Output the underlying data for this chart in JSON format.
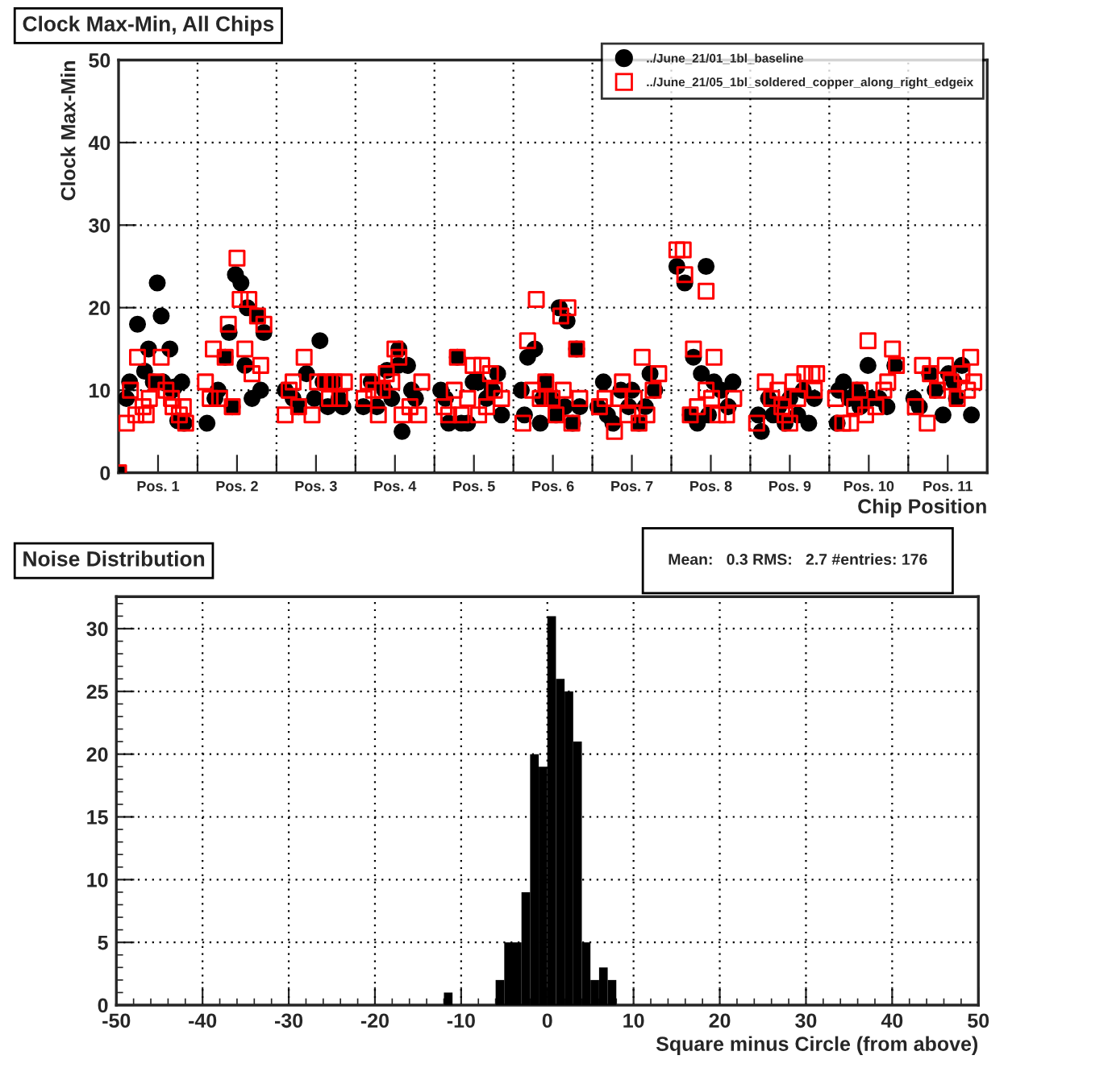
{
  "chart_data": [
    {
      "type": "scatter",
      "title": "Clock Max-Min, All Chips",
      "xlabel": "Chip Position",
      "ylabel": "Clock Max-Min",
      "xlim": [
        0,
        11
      ],
      "ylim": [
        0,
        50
      ],
      "yticks": [
        0,
        10,
        20,
        30,
        40,
        50
      ],
      "xticks": [
        {
          "value": 1,
          "label": null
        },
        {
          "value": 2,
          "label": null
        },
        {
          "value": 3,
          "label": null
        },
        {
          "value": 4,
          "label": null
        },
        {
          "value": 5,
          "label": null
        },
        {
          "value": 6,
          "label": null
        },
        {
          "value": 7,
          "label": null
        },
        {
          "value": 8,
          "label": null
        },
        {
          "value": 9,
          "label": null
        },
        {
          "value": 10,
          "label": null
        },
        {
          "value": 0.5,
          "label": "Pos. 1"
        },
        {
          "value": 1.5,
          "label": "Pos. 2"
        },
        {
          "value": 2.5,
          "label": "Pos. 3"
        },
        {
          "value": 3.5,
          "label": "Pos. 4"
        },
        {
          "value": 4.5,
          "label": "Pos. 5"
        },
        {
          "value": 5.5,
          "label": "Pos. 6"
        },
        {
          "value": 6.5,
          "label": "Pos. 7"
        },
        {
          "value": 7.5,
          "label": "Pos. 8"
        },
        {
          "value": 8.5,
          "label": "Pos. 9"
        },
        {
          "value": 9.5,
          "label": "Pos. 10"
        },
        {
          "value": 10.5,
          "label": "Pos. 11"
        }
      ],
      "grid": true,
      "legend": "top right",
      "series": [
        {
          "name": "../June_21/01_1bl_baseline",
          "color": "#000000",
          "marker": "circle",
          "x": [
            0.0,
            0.1,
            0.14,
            0.24,
            0.33,
            0.38,
            0.44,
            0.49,
            0.54,
            0.56,
            0.65,
            0.68,
            0.71,
            0.75,
            0.8,
            0.83,
            1.12,
            1.22,
            1.26,
            1.35,
            1.4,
            1.44,
            1.48,
            1.55,
            1.6,
            1.63,
            1.69,
            1.76,
            1.8,
            1.84,
            2.11,
            2.21,
            2.28,
            2.38,
            2.48,
            2.55,
            2.59,
            2.65,
            2.72,
            2.79,
            2.84,
            3.1,
            3.2,
            3.27,
            3.37,
            3.4,
            3.46,
            3.54,
            3.55,
            3.59,
            3.66,
            3.71,
            3.76,
            4.08,
            4.14,
            4.18,
            4.29,
            4.34,
            4.42,
            4.49,
            4.56,
            4.66,
            4.73,
            4.8,
            4.85,
            5.1,
            5.14,
            5.18,
            5.27,
            5.34,
            5.37,
            5.41,
            5.48,
            5.54,
            5.58,
            5.65,
            5.68,
            5.75,
            5.8,
            5.84,
            6.07,
            6.14,
            6.19,
            6.26,
            6.36,
            6.46,
            6.5,
            6.59,
            6.67,
            6.73,
            6.79,
            7.07,
            7.17,
            7.24,
            7.28,
            7.33,
            7.38,
            7.44,
            7.47,
            7.54,
            7.63,
            7.72,
            7.78,
            8.1,
            8.14,
            8.23,
            8.29,
            8.36,
            8.44,
            8.5,
            8.6,
            8.67,
            8.74,
            8.81,
            9.1,
            9.12,
            9.18,
            9.25,
            9.35,
            9.39,
            9.49,
            9.52,
            9.63,
            9.73,
            9.83,
            10.07,
            10.14,
            10.27,
            10.34,
            10.44,
            10.51,
            10.58,
            10.61,
            10.68,
            10.8
          ],
          "values": [
            0,
            9,
            11,
            18,
            12.3,
            15,
            11,
            23,
            19,
            11,
            15,
            10,
            10.4,
            6.3,
            11,
            6,
            6,
            9,
            10,
            14,
            17,
            8,
            24,
            23,
            13,
            20,
            9,
            19,
            10,
            17,
            10,
            9,
            8,
            12,
            9,
            16,
            11,
            8,
            11,
            9,
            8,
            8,
            11,
            8,
            10,
            12.4,
            9,
            13,
            15,
            5,
            13,
            10,
            9,
            10,
            9,
            6,
            14,
            6,
            6,
            11,
            11,
            9,
            10,
            12,
            7,
            10,
            7,
            14,
            15,
            6,
            9,
            11,
            9,
            7,
            20,
            8,
            18.4,
            6,
            15,
            8,
            8,
            11,
            7,
            6,
            10,
            8,
            10,
            6,
            8,
            12,
            10,
            25,
            23,
            7,
            14,
            6,
            12,
            25,
            7,
            11,
            10,
            8,
            11,
            7,
            5,
            9,
            7,
            8,
            6,
            9,
            7,
            10,
            6,
            9,
            6,
            10,
            11,
            9,
            10,
            8,
            13,
            9,
            9,
            8,
            13,
            9,
            8,
            12,
            10,
            7,
            12,
            11,
            9,
            13,
            7
          ]
        },
        {
          "name": "../June_21/05_1bl_soldered_copper_along_right_edgeix",
          "color": "#ff0000",
          "marker": "square",
          "x": [
            0.0,
            0.1,
            0.15,
            0.22,
            0.24,
            0.31,
            0.35,
            0.39,
            0.48,
            0.54,
            0.6,
            0.67,
            0.69,
            0.77,
            0.82,
            0.85,
            1.1,
            1.16,
            1.2,
            1.28,
            1.35,
            1.39,
            1.44,
            1.5,
            1.54,
            1.6,
            1.65,
            1.69,
            1.76,
            1.8,
            1.84,
            2.11,
            2.16,
            2.21,
            2.28,
            2.35,
            2.45,
            2.52,
            2.62,
            2.67,
            2.73,
            2.8,
            2.86,
            3.11,
            3.16,
            3.23,
            3.29,
            3.34,
            3.39,
            3.46,
            3.5,
            3.55,
            3.59,
            3.69,
            3.8,
            3.84,
            4.12,
            4.18,
            4.25,
            4.29,
            4.34,
            4.42,
            4.49,
            4.56,
            4.6,
            4.66,
            4.71,
            4.76,
            4.85,
            5.12,
            5.18,
            5.24,
            5.29,
            5.34,
            5.41,
            5.49,
            5.54,
            5.6,
            5.63,
            5.69,
            5.74,
            5.8,
            5.84,
            6.09,
            6.16,
            6.28,
            6.33,
            6.38,
            6.45,
            6.53,
            6.59,
            6.63,
            6.69,
            6.77,
            6.84,
            7.07,
            7.15,
            7.17,
            7.24,
            7.28,
            7.33,
            7.44,
            7.44,
            7.51,
            7.54,
            7.59,
            7.7,
            7.79,
            8.08,
            8.19,
            8.27,
            8.35,
            8.4,
            8.44,
            8.5,
            8.54,
            8.6,
            8.69,
            8.78,
            8.81,
            8.84,
            9.08,
            9.17,
            9.27,
            9.32,
            9.39,
            9.46,
            9.49,
            9.59,
            9.69,
            9.74,
            9.8,
            9.85,
            10.09,
            10.18,
            10.24,
            10.28,
            10.37,
            10.47,
            10.54,
            10.62,
            10.68,
            10.75,
            10.79,
            10.83
          ],
          "values": [
            0,
            6,
            10,
            7,
            14,
            8,
            7,
            9,
            11,
            14,
            10,
            9,
            8,
            7,
            8,
            6,
            11,
            9,
            15,
            9,
            14,
            18,
            8,
            26,
            21,
            15,
            21,
            12,
            19,
            13,
            18,
            7,
            10,
            11,
            8,
            14,
            7,
            11,
            11,
            9,
            11,
            9,
            11,
            9,
            11,
            10,
            7,
            10,
            12,
            11,
            15,
            14,
            7,
            8,
            7,
            11,
            8,
            7,
            10,
            14,
            7,
            9,
            13,
            7,
            13,
            8,
            12,
            10,
            9,
            6,
            16,
            10,
            21,
            9,
            11,
            9,
            7,
            19,
            10,
            20,
            6,
            15,
            9,
            8,
            9,
            5,
            9,
            11,
            7,
            9,
            6,
            14,
            7,
            10,
            12,
            27,
            27,
            24,
            7,
            15,
            8,
            10,
            22,
            9,
            14,
            7,
            7,
            9,
            6,
            11,
            9,
            10,
            8,
            7,
            6,
            11,
            9,
            12,
            12,
            10,
            12,
            9,
            6,
            6,
            8,
            10,
            7,
            16,
            8,
            10,
            11,
            15,
            13,
            8,
            13,
            6,
            12,
            10,
            13,
            11,
            9,
            12,
            10,
            14,
            11
          ]
        }
      ]
    },
    {
      "type": "histogram",
      "title": "Noise Distribution",
      "xlabel": "Square minus Circle (from above)",
      "bins": [
        -12,
        -11,
        -10,
        -9,
        -8,
        -7,
        -6,
        -5,
        -4,
        -3,
        -2,
        -1,
        0,
        1,
        2,
        3,
        4,
        5,
        6,
        7,
        8
      ],
      "values": [
        1,
        0,
        0,
        0,
        0,
        0,
        2,
        5,
        5,
        9,
        20,
        19,
        31,
        26,
        25,
        21,
        5,
        2,
        3,
        2
      ],
      "color": "#000000",
      "xlim": [
        -50,
        50
      ],
      "xticks": [
        -50,
        -40,
        -30,
        -20,
        -10,
        0,
        10,
        20,
        30,
        40,
        50
      ],
      "ylim": [
        0,
        32.55
      ],
      "yticks": [
        0,
        5,
        10,
        15,
        20,
        25,
        30
      ],
      "grid": true,
      "annotations": [
        "Mean:   0.3 RMS:   2.7 #entries: 176"
      ]
    }
  ]
}
